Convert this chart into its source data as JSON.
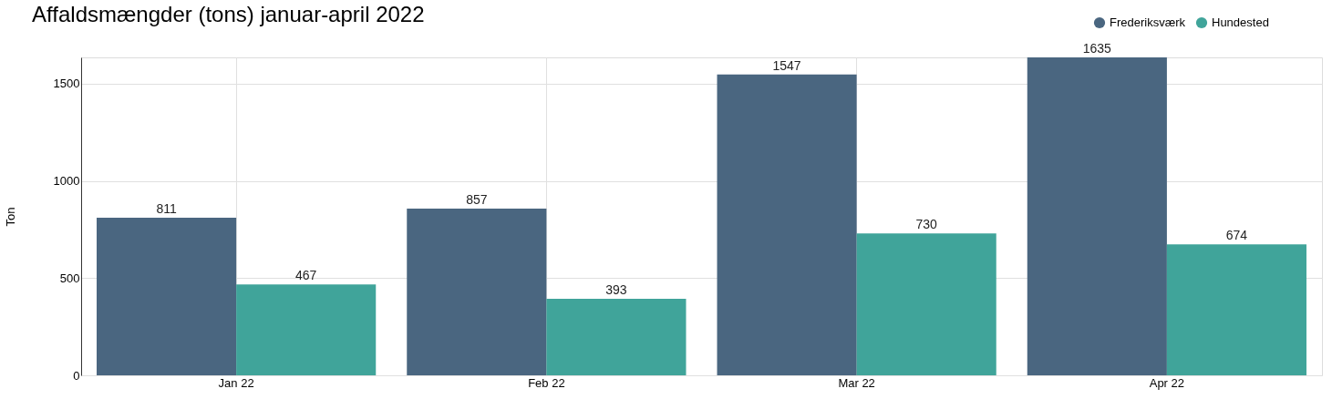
{
  "chart_data": {
    "type": "bar",
    "title": "Affaldsmængder (tons) januar-april 2022",
    "ylabel": "Ton",
    "categories": [
      "Jan 22",
      "Feb 22",
      "Mar 22",
      "Apr 22"
    ],
    "series": [
      {
        "name": "Frederiksværk",
        "color": "#4a6680",
        "values": [
          811,
          857,
          1547,
          1635
        ]
      },
      {
        "name": "Hundested",
        "color": "#40a49a",
        "values": [
          467,
          393,
          730,
          674
        ]
      }
    ],
    "ylim": [
      0,
      1635
    ],
    "yticks": [
      0,
      500,
      1000,
      1500
    ],
    "grid": true,
    "legend": "top right",
    "data_labels": true
  }
}
